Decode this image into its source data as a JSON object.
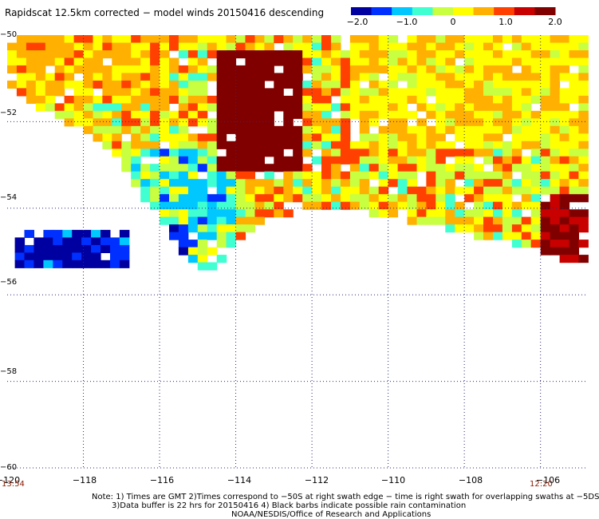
{
  "title": "Rapidscat 12.5km corrected − model winds 20150416 descending",
  "colorbar": {
    "ticks": [
      "−2.0",
      "−1.0",
      "0",
      "1.0",
      "2.0"
    ],
    "range": [
      -2.0,
      2.0
    ],
    "colors": [
      "#0000a0",
      "#0030ff",
      "#00c8ff",
      "#40ffd0",
      "#c8ff40",
      "#ffff00",
      "#ffb000",
      "#ff4000",
      "#c80000",
      "#800000"
    ]
  },
  "map": {
    "lat_labels": [
      "−50",
      "−52",
      "−54",
      "−56",
      "−58",
      "−60"
    ],
    "lon_labels": [
      "−120",
      "−118",
      "−116",
      "−114",
      "−112",
      "−110",
      "−108",
      "−106"
    ],
    "lat_range": [
      -60,
      -50
    ],
    "lon_range": [
      -120,
      -104.8
    ],
    "grid": true,
    "start_time": "13:54",
    "end_time": "12:20"
  },
  "notes": {
    "line1": "Note: 1) Times are GMT 2)Times correspond to −50S at right swath edge − time is right swath for overlapping swaths at −5DS",
    "line2": "3)Data buffer is 22 hrs for 20150416 4) Black barbs indicate possible rain contamination",
    "line3": "NOAA/NESDIS/Office of Research and Applications"
  },
  "chart_data": {
    "type": "heatmap",
    "title": "Rapidscat 12.5km corrected − model winds 20150416 descending",
    "value_range": [
      -2.0,
      2.0
    ],
    "x_range": [
      -120,
      -104.8
    ],
    "y_range": [
      -60,
      -50
    ],
    "regions": [
      {
        "lon": [
          -114.5,
          -112.3
        ],
        "lat": [
          -53.0,
          -50.3
        ],
        "value": 2.0
      },
      {
        "lon": [
          -111.0,
          -105.0
        ],
        "lat": [
          -52.5,
          -50.0
        ],
        "value": 0.3
      },
      {
        "lon": [
          -120.0,
          -116.0
        ],
        "lat": [
          -51.5,
          -50.0
        ],
        "value": 0.5
      },
      {
        "lon": [
          -117.0,
          -115.5
        ],
        "lat": [
          -55.4,
          -54.2
        ],
        "value": -1.6
      },
      {
        "lon": [
          -119.8,
          -116.9
        ],
        "lat": [
          -55.2,
          -54.5
        ],
        "value": -1.7
      },
      {
        "lon": [
          -106.0,
          -104.8
        ],
        "lat": [
          -55.2,
          -53.5
        ],
        "value": 1.7
      }
    ]
  }
}
